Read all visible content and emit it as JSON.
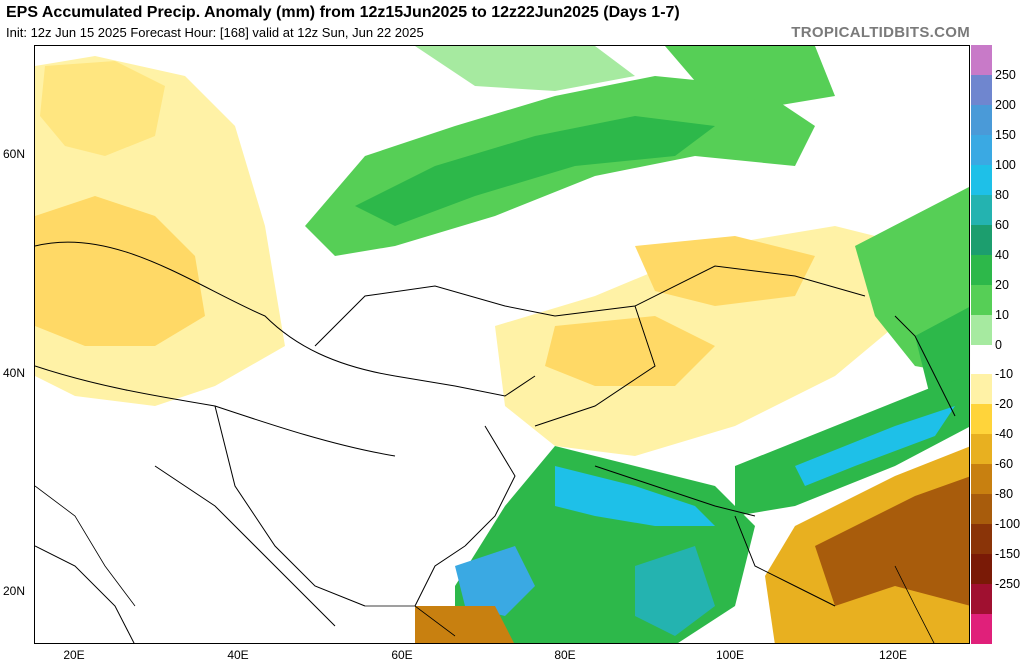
{
  "header": {
    "title": "EPS Accumulated Precip. Anomaly (mm) from 12z15Jun2025 to 12z22Jun2025 (Days 1-7)",
    "subtitle": "Init: 12z Jun 15 2025   Forecast Hour: [168]   valid at 12z Sun, Jun 22 2025",
    "brand": "TROPICALTIDBITS.COM"
  },
  "axes": {
    "lat_labels": [
      "60N",
      "40N",
      "20N"
    ],
    "lon_labels": [
      "20E",
      "40E",
      "60E",
      "80E",
      "100E",
      "120E"
    ]
  },
  "colorbar": {
    "labels": [
      "250",
      "200",
      "150",
      "100",
      "80",
      "60",
      "40",
      "20",
      "10",
      "0",
      "-10",
      "-20",
      "-40",
      "-60",
      "-80",
      "-100",
      "-150",
      "-250"
    ],
    "colors": [
      "#c87ac8",
      "#6f86cf",
      "#4a9ad8",
      "#3aa9e3",
      "#1ec0e8",
      "#24b3b0",
      "#1c9e6e",
      "#2db84a",
      "#56cf56",
      "#a6eaa0",
      "#ffffff",
      "#fff2a6",
      "#ffd43a",
      "#e8b020",
      "#c88010",
      "#a85c0c",
      "#8a3408",
      "#7a1a06",
      "#a01030",
      "#e0207a"
    ]
  },
  "map_colors": {
    "ocean": "#ffffff",
    "border": "#000000"
  }
}
